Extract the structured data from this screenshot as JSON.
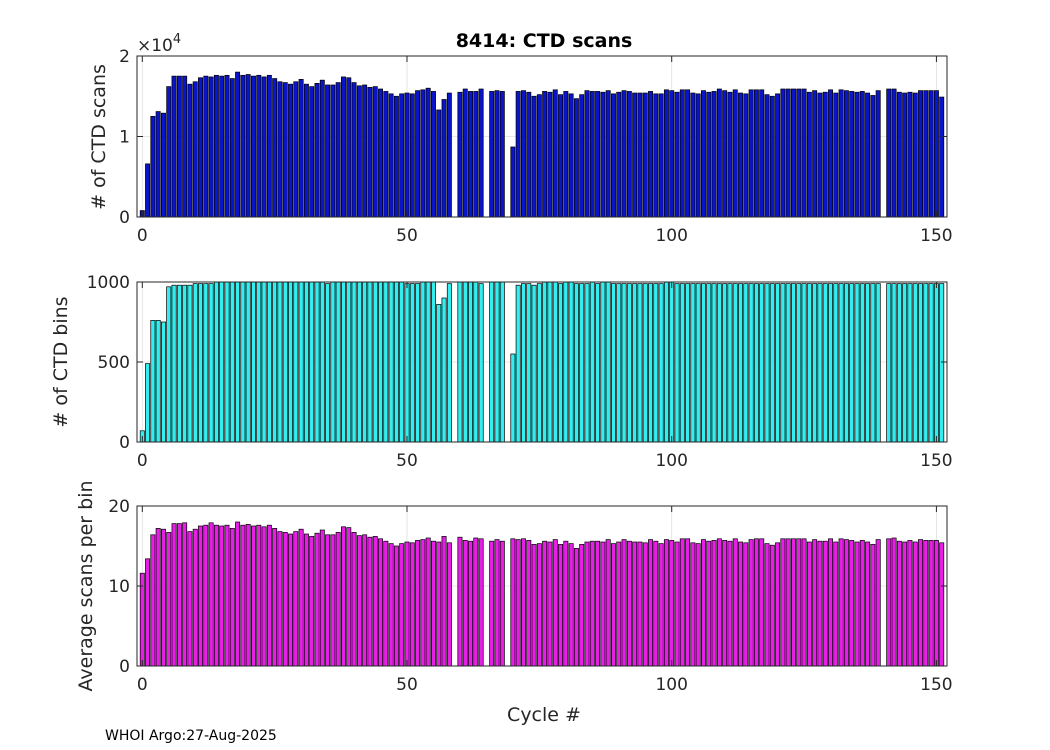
{
  "chart_data": [
    {
      "type": "bar",
      "title": "8414: CTD scans",
      "xlabel": "",
      "ylabel": "# of CTD scans",
      "exponent_label": "×10",
      "exponent_power": "4",
      "xlim": [
        -1,
        152
      ],
      "ylim": [
        0,
        20000
      ],
      "xticks": [
        0,
        50,
        100,
        150
      ],
      "yticks": [
        0,
        10000,
        20000
      ],
      "ytick_labels": [
        "0",
        "1",
        "2"
      ],
      "grid": true,
      "bar_color": "#0a14c8",
      "x": [
        0,
        1,
        2,
        3,
        4,
        5,
        6,
        7,
        8,
        9,
        10,
        11,
        12,
        13,
        14,
        15,
        16,
        17,
        18,
        19,
        20,
        21,
        22,
        23,
        24,
        25,
        26,
        27,
        28,
        29,
        30,
        31,
        32,
        33,
        34,
        35,
        36,
        37,
        38,
        39,
        40,
        41,
        42,
        43,
        44,
        45,
        46,
        47,
        48,
        49,
        50,
        51,
        52,
        53,
        54,
        55,
        56,
        57,
        58,
        59,
        60,
        61,
        62,
        63,
        64,
        65,
        66,
        67,
        68,
        69,
        70,
        71,
        72,
        73,
        74,
        75,
        76,
        77,
        78,
        79,
        80,
        81,
        82,
        83,
        84,
        85,
        86,
        87,
        88,
        89,
        90,
        91,
        92,
        93,
        94,
        95,
        96,
        97,
        98,
        99,
        100,
        101,
        102,
        103,
        104,
        105,
        106,
        107,
        108,
        109,
        110,
        111,
        112,
        113,
        114,
        115,
        116,
        117,
        118,
        119,
        120,
        121,
        122,
        123,
        124,
        125,
        126,
        127,
        128,
        129,
        130,
        131,
        132,
        133,
        134,
        135,
        136,
        137,
        138,
        139,
        140,
        141,
        142,
        143,
        144,
        145,
        146,
        147,
        148,
        149,
        150,
        151
      ],
      "values": [
        800,
        6600,
        12500,
        13100,
        12900,
        16200,
        17500,
        17500,
        17500,
        16500,
        16800,
        17300,
        17500,
        17400,
        17600,
        17500,
        17600,
        17200,
        18000,
        17600,
        17700,
        17500,
        17600,
        17400,
        17600,
        17200,
        16800,
        16700,
        16500,
        16800,
        17100,
        16500,
        16200,
        16600,
        17000,
        16400,
        16400,
        16700,
        17400,
        17300,
        16700,
        16300,
        16400,
        16100,
        16200,
        15900,
        15600,
        15300,
        15000,
        15300,
        15400,
        15300,
        15700,
        15800,
        16000,
        15600,
        13300,
        14600,
        15400,
        0,
        15500,
        15900,
        15600,
        15600,
        15900,
        0,
        15600,
        15700,
        15600,
        0,
        8700,
        15600,
        15700,
        15500,
        15000,
        15200,
        15600,
        15500,
        15800,
        15200,
        15600,
        15300,
        14700,
        15200,
        15700,
        15600,
        15600,
        15500,
        15700,
        15300,
        15500,
        15700,
        15600,
        15400,
        15400,
        15400,
        15600,
        15300,
        15300,
        15800,
        15700,
        15500,
        15800,
        15800,
        15400,
        15300,
        15700,
        15500,
        15600,
        15900,
        15700,
        15500,
        15800,
        15400,
        15300,
        15800,
        15800,
        15800,
        15200,
        15000,
        15300,
        15900,
        15900,
        15900,
        15900,
        15900,
        15500,
        15700,
        15400,
        15500,
        15800,
        15400,
        15800,
        15700,
        15600,
        15500,
        15600,
        15400,
        15100,
        15700,
        0,
        15900,
        15900,
        15500,
        15400,
        15500,
        15400,
        15700,
        15700,
        15700,
        15700,
        14900
      ],
      "xtick_labels": [
        "0",
        "50",
        "100",
        "150"
      ]
    },
    {
      "type": "bar",
      "title": "",
      "xlabel": "",
      "ylabel": "# of CTD bins",
      "xlim": [
        -1,
        152
      ],
      "ylim": [
        0,
        1000
      ],
      "xticks": [
        0,
        50,
        100,
        150
      ],
      "xtick_labels": [
        "0",
        "50",
        "100",
        "150"
      ],
      "yticks": [
        0,
        500,
        1000
      ],
      "ytick_labels": [
        "0",
        "500",
        "1000"
      ],
      "grid": true,
      "bar_color": "#33eeee",
      "x": [
        0,
        1,
        2,
        3,
        4,
        5,
        6,
        7,
        8,
        9,
        10,
        11,
        12,
        13,
        14,
        15,
        16,
        17,
        18,
        19,
        20,
        21,
        22,
        23,
        24,
        25,
        26,
        27,
        28,
        29,
        30,
        31,
        32,
        33,
        34,
        35,
        36,
        37,
        38,
        39,
        40,
        41,
        42,
        43,
        44,
        45,
        46,
        47,
        48,
        49,
        50,
        51,
        52,
        53,
        54,
        55,
        56,
        57,
        58,
        59,
        60,
        61,
        62,
        63,
        64,
        65,
        66,
        67,
        68,
        69,
        70,
        71,
        72,
        73,
        74,
        75,
        76,
        77,
        78,
        79,
        80,
        81,
        82,
        83,
        84,
        85,
        86,
        87,
        88,
        89,
        90,
        91,
        92,
        93,
        94,
        95,
        96,
        97,
        98,
        99,
        100,
        101,
        102,
        103,
        104,
        105,
        106,
        107,
        108,
        109,
        110,
        111,
        112,
        113,
        114,
        115,
        116,
        117,
        118,
        119,
        120,
        121,
        122,
        123,
        124,
        125,
        126,
        127,
        128,
        129,
        130,
        131,
        132,
        133,
        134,
        135,
        136,
        137,
        138,
        139,
        140,
        141,
        142,
        143,
        144,
        145,
        146,
        147,
        148,
        149,
        150,
        151
      ],
      "values": [
        70,
        490,
        760,
        760,
        750,
        970,
        980,
        980,
        980,
        980,
        990,
        990,
        990,
        990,
        1000,
        1000,
        1000,
        1000,
        1000,
        1000,
        1000,
        1000,
        1000,
        1000,
        1000,
        1000,
        1000,
        1000,
        1000,
        1000,
        1000,
        1000,
        1000,
        1000,
        1000,
        990,
        1000,
        1000,
        1000,
        1000,
        1000,
        1000,
        1000,
        1000,
        1000,
        1000,
        1000,
        1000,
        1000,
        1000,
        990,
        990,
        990,
        1000,
        1000,
        1000,
        860,
        900,
        990,
        0,
        1000,
        1000,
        1000,
        1000,
        990,
        0,
        1000,
        1000,
        1000,
        0,
        550,
        980,
        990,
        990,
        980,
        990,
        1000,
        1000,
        1000,
        990,
        1000,
        1000,
        990,
        990,
        990,
        1000,
        990,
        1000,
        1000,
        990,
        990,
        990,
        990,
        990,
        990,
        990,
        990,
        990,
        990,
        1000,
        1000,
        990,
        990,
        990,
        990,
        990,
        990,
        990,
        990,
        990,
        990,
        990,
        990,
        990,
        990,
        990,
        990,
        990,
        990,
        990,
        990,
        990,
        990,
        990,
        990,
        990,
        990,
        990,
        990,
        990,
        990,
        990,
        990,
        990,
        990,
        990,
        990,
        990,
        990,
        990,
        0,
        990,
        990,
        990,
        990,
        990,
        990,
        990,
        990,
        990,
        990,
        990
      ],
      "note": "Values estimated from bar heights"
    },
    {
      "type": "bar",
      "title": "",
      "xlabel": "Cycle #",
      "ylabel": "Average scans per bin",
      "xlim": [
        -1,
        152
      ],
      "ylim": [
        0,
        20
      ],
      "xticks": [
        0,
        50,
        100,
        150
      ],
      "xtick_labels": [
        "0",
        "50",
        "100",
        "150"
      ],
      "yticks": [
        0,
        10,
        20
      ],
      "ytick_labels": [
        "0",
        "10",
        "20"
      ],
      "grid": true,
      "bar_color": "#e61ee6",
      "x": [
        0,
        1,
        2,
        3,
        4,
        5,
        6,
        7,
        8,
        9,
        10,
        11,
        12,
        13,
        14,
        15,
        16,
        17,
        18,
        19,
        20,
        21,
        22,
        23,
        24,
        25,
        26,
        27,
        28,
        29,
        30,
        31,
        32,
        33,
        34,
        35,
        36,
        37,
        38,
        39,
        40,
        41,
        42,
        43,
        44,
        45,
        46,
        47,
        48,
        49,
        50,
        51,
        52,
        53,
        54,
        55,
        56,
        57,
        58,
        59,
        60,
        61,
        62,
        63,
        64,
        65,
        66,
        67,
        68,
        69,
        70,
        71,
        72,
        73,
        74,
        75,
        76,
        77,
        78,
        79,
        80,
        81,
        82,
        83,
        84,
        85,
        86,
        87,
        88,
        89,
        90,
        91,
        92,
        93,
        94,
        95,
        96,
        97,
        98,
        99,
        100,
        101,
        102,
        103,
        104,
        105,
        106,
        107,
        108,
        109,
        110,
        111,
        112,
        113,
        114,
        115,
        116,
        117,
        118,
        119,
        120,
        121,
        122,
        123,
        124,
        125,
        126,
        127,
        128,
        129,
        130,
        131,
        132,
        133,
        134,
        135,
        136,
        137,
        138,
        139,
        140,
        141,
        142,
        143,
        144,
        145,
        146,
        147,
        148,
        149,
        150,
        151
      ],
      "values": [
        11.6,
        13.4,
        16.4,
        17.2,
        17.1,
        16.7,
        17.8,
        17.8,
        17.9,
        16.8,
        17.1,
        17.5,
        17.6,
        17.9,
        17.6,
        17.5,
        17.6,
        17.2,
        18.0,
        17.6,
        17.7,
        17.5,
        17.6,
        17.4,
        17.6,
        17.2,
        16.8,
        16.7,
        16.5,
        16.8,
        17.1,
        16.5,
        16.2,
        16.6,
        17.0,
        16.4,
        16.4,
        16.7,
        17.4,
        17.3,
        16.7,
        16.3,
        16.4,
        16.1,
        16.2,
        15.9,
        15.6,
        15.3,
        15.0,
        15.3,
        15.5,
        15.4,
        15.7,
        15.8,
        16.0,
        15.6,
        15.5,
        16.2,
        15.4,
        0,
        16.1,
        15.7,
        15.6,
        16.0,
        15.9,
        0,
        15.6,
        15.8,
        15.6,
        0,
        15.9,
        15.8,
        15.9,
        15.7,
        15.2,
        15.3,
        15.6,
        15.5,
        15.8,
        15.2,
        15.6,
        15.3,
        14.7,
        15.2,
        15.5,
        15.6,
        15.6,
        15.5,
        15.8,
        15.3,
        15.5,
        15.8,
        15.6,
        15.5,
        15.5,
        15.4,
        15.8,
        15.6,
        15.3,
        15.8,
        15.7,
        15.5,
        15.9,
        15.9,
        15.4,
        15.3,
        15.8,
        15.6,
        15.7,
        15.9,
        15.7,
        15.6,
        15.9,
        15.5,
        15.4,
        15.8,
        15.9,
        15.9,
        15.3,
        15.1,
        15.4,
        15.9,
        15.9,
        15.9,
        15.9,
        15.9,
        15.5,
        15.8,
        15.6,
        15.6,
        15.9,
        15.5,
        15.9,
        15.8,
        15.7,
        15.5,
        15.7,
        15.5,
        15.2,
        15.8,
        0,
        15.9,
        16.0,
        15.6,
        15.5,
        15.7,
        15.5,
        15.8,
        15.7,
        15.7,
        15.7,
        15.4
      ]
    }
  ],
  "footer": "WHOI Argo:27-Aug-2025"
}
